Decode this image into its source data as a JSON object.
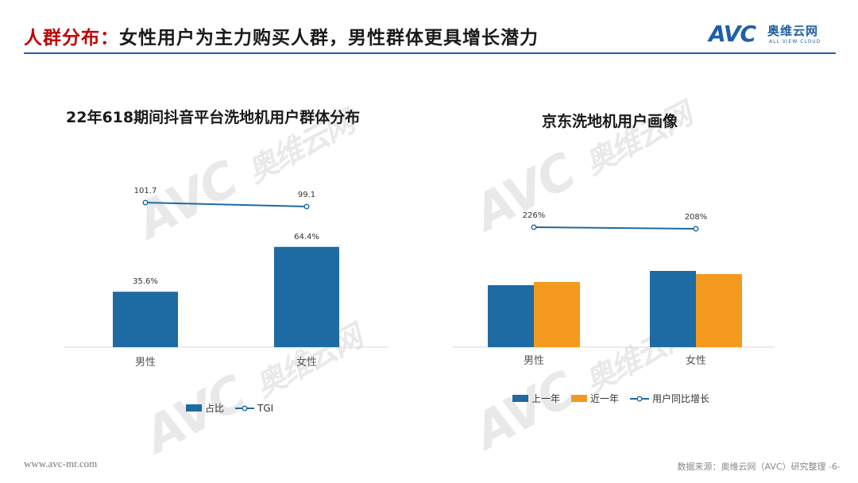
{
  "header": {
    "title_accent": "人群分布：",
    "title_rest": "女性用户为主力购买人群，男性群体更具增长潜力"
  },
  "logo": {
    "mark": "AVC",
    "cn": "奥维云网",
    "en": "ALL VIEW CLOUD"
  },
  "watermark": {
    "mark": "AVC",
    "cn": "奥维云网",
    "en": "ALL VIEW CLOUD"
  },
  "footer": {
    "url": "www.avc-mr.com",
    "source": "数据来源：奥维云网（AVC）研究整理  -6-"
  },
  "colors": {
    "accent_red": "#c00000",
    "brand_blue": "#1f5fa8",
    "bar_blue": "#1e6aa3",
    "bar_orange": "#f39a1e"
  },
  "chart_data": [
    {
      "type": "bar",
      "title": "22年618期间抖音平台洗地机用户群体分布",
      "categories": [
        "男性",
        "女性"
      ],
      "series": [
        {
          "name": "占比",
          "kind": "bar",
          "values": [
            35.6,
            64.4
          ],
          "labels": [
            "35.6%",
            "64.4%"
          ],
          "color": "#1e6aa3"
        },
        {
          "name": "TGI",
          "kind": "line",
          "values": [
            101.7,
            99.1
          ],
          "labels": [
            "101.7",
            "99.1"
          ],
          "color": "#1e6aa3"
        }
      ],
      "legend": "bottom"
    },
    {
      "type": "bar",
      "title": "京东洗地机用户画像",
      "categories": [
        "男性",
        "女性"
      ],
      "series": [
        {
          "name": "上一年",
          "kind": "bar",
          "values": [
            39,
            48
          ],
          "color": "#1e6aa3"
        },
        {
          "name": "近一年",
          "kind": "bar",
          "values": [
            41,
            46
          ],
          "color": "#f39a1e"
        },
        {
          "name": "用户同比增长",
          "kind": "line",
          "values": [
            226,
            208
          ],
          "labels": [
            "226%",
            "208%"
          ],
          "color": "#1e6aa3"
        }
      ],
      "legend": "bottom"
    }
  ]
}
